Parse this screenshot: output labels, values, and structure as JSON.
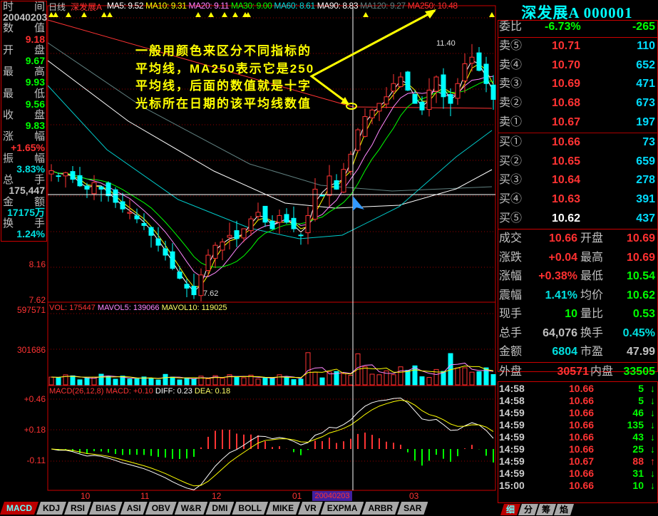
{
  "header": {
    "period": "日线",
    "stock_name": "深发展A",
    "ma": [
      {
        "label": "MA5: 9.52",
        "color": "#ffffff"
      },
      {
        "label": "MA10: 9.31",
        "color": "#ffff00"
      },
      {
        "label": "MA20: 9.11",
        "color": "#ff80ff"
      },
      {
        "label": "MA30: 9.00",
        "color": "#00ff00"
      },
      {
        "label": "MA60: 8.61",
        "color": "#00e0e0"
      },
      {
        "label": "MA90: 8.83",
        "color": "#ffffff"
      },
      {
        "label": "MA120: 9.27",
        "color": "#608080"
      },
      {
        "label": "MA250: 10.48",
        "color": "#ff3030"
      }
    ]
  },
  "left_panel": {
    "rows": [
      {
        "l": "时",
        "r": "间"
      },
      {
        "v": "20040203",
        "c": "#c0c0c0"
      },
      {
        "l": "数",
        "r": "值"
      },
      {
        "v": "9.18",
        "c": "#ff3030"
      },
      {
        "l": "开",
        "r": "盘"
      },
      {
        "v": "9.67",
        "c": "#00ff00"
      },
      {
        "l": "最",
        "r": "高"
      },
      {
        "v": "9.93",
        "c": "#00ff00"
      },
      {
        "l": "最",
        "r": "低"
      },
      {
        "v": "9.56",
        "c": "#00ff00"
      },
      {
        "l": "收",
        "r": "盘"
      },
      {
        "v": "9.83",
        "c": "#00ff00"
      },
      {
        "l": "涨",
        "r": "幅"
      },
      {
        "v": "+1.65%",
        "c": "#ff3030"
      },
      {
        "l": "振",
        "r": "幅"
      },
      {
        "v": "3.83%",
        "c": "#00e0e0"
      },
      {
        "l": "总",
        "r": "手"
      },
      {
        "v": "175,447",
        "c": "#c0c0c0"
      },
      {
        "l": "金",
        "r": "额"
      },
      {
        "v": "17175万",
        "c": "#00e0e0"
      },
      {
        "l": "换",
        "r": "手"
      },
      {
        "v": "1.24%",
        "c": "#00e0e0"
      }
    ]
  },
  "annotation": "一般用颜色来区分不同指标的平均线，MA250表示它是250平均线，后面的数值就是十字光标所在日期的该平均线数值",
  "chart_data": {
    "type": "candlestick",
    "price_ticks": [
      "8.16",
      "7.62"
    ],
    "high_label": "11.40",
    "low_label": "7.62",
    "price_range": [
      7.62,
      11.4
    ],
    "close": [
      9.58,
      9.5,
      9.55,
      9.45,
      9.35,
      9.3,
      9.4,
      9.3,
      9.2,
      9.1,
      9.0,
      8.95,
      8.85,
      8.75,
      8.6,
      8.45,
      8.3,
      8.1,
      7.95,
      7.8,
      7.7,
      8.0,
      8.3,
      8.45,
      8.5,
      8.6,
      8.55,
      8.7,
      8.85,
      8.95,
      8.8,
      8.7,
      8.9,
      8.8,
      8.7,
      8.6,
      8.9,
      9.3,
      9.2,
      9.5,
      9.3,
      9.6,
      9.83,
      10.2,
      10.4,
      10.5,
      10.6,
      10.7,
      10.9,
      11.0,
      10.8,
      10.6,
      10.5,
      10.8,
      11.0,
      10.7,
      10.6,
      10.9,
      11.2,
      11.3,
      11.1,
      10.9,
      10.66
    ],
    "volume": {
      "label": "VOL: 175447",
      "mavol5": "MAVOL5: 139066",
      "mavol10": "MAVOL10: 119025",
      "ticks": [
        "597571",
        "301686"
      ],
      "range": [
        0,
        597571
      ]
    },
    "macd": {
      "label": "MACD(26,12,8)",
      "macd": "MACD: +0.10",
      "diff": "DIFF: 0.23",
      "dea": "DEA: 0.18",
      "ticks": [
        "+0.46",
        "+0.18",
        "-0.11"
      ]
    },
    "x_ticks": [
      "10",
      "11",
      "12",
      "01",
      "03"
    ],
    "cursor_date": "20040203"
  },
  "indicator_tabs": [
    "MACD",
    "KDJ",
    "RSI",
    "BIAS",
    "ASI",
    "OBV",
    "W&R",
    "DMI",
    "BOLL",
    "MIKE",
    "VR",
    "EXPMA",
    "ARBR",
    "SAR"
  ],
  "right": {
    "title": "深发展A 000001",
    "weibi": {
      "label": "委比",
      "pct": "-6.73%",
      "diff": "-265"
    },
    "sell": [
      {
        "l": "卖⑤",
        "p": "10.71",
        "v": "110"
      },
      {
        "l": "卖④",
        "p": "10.70",
        "v": "652"
      },
      {
        "l": "卖③",
        "p": "10.69",
        "v": "471"
      },
      {
        "l": "卖②",
        "p": "10.68",
        "v": "673"
      },
      {
        "l": "卖①",
        "p": "10.67",
        "v": "197"
      }
    ],
    "buy": [
      {
        "l": "买①",
        "p": "10.66",
        "v": "73"
      },
      {
        "l": "买②",
        "p": "10.65",
        "v": "659"
      },
      {
        "l": "买③",
        "p": "10.64",
        "v": "278"
      },
      {
        "l": "买④",
        "p": "10.63",
        "v": "391"
      },
      {
        "l": "买⑤",
        "p": "10.62",
        "v": "437",
        "pc": "#ffffff"
      }
    ],
    "stats": [
      {
        "l1": "成交",
        "v1": "10.66",
        "c1": "#ff3030",
        "l2": "开盘",
        "v2": "10.69",
        "c2": "#ff3030"
      },
      {
        "l1": "涨跌",
        "v1": "+0.04",
        "c1": "#ff3030",
        "l2": "最高",
        "v2": "10.69",
        "c2": "#ff3030"
      },
      {
        "l1": "涨幅",
        "v1": "+0.38%",
        "c1": "#ff3030",
        "l2": "最低",
        "v2": "10.54",
        "c2": "#00ff00"
      },
      {
        "l1": "震幅",
        "v1": "1.41%",
        "c1": "#00e0e0",
        "l2": "均价",
        "v2": "10.62",
        "c2": "#00ff00"
      },
      {
        "l1": "现手",
        "v1": "10",
        "c1": "#00ff00",
        "l2": "量比",
        "v2": "0.53",
        "c2": "#00ff00"
      },
      {
        "l1": "总手",
        "v1": "64,076",
        "c1": "#c0c0c0",
        "l2": "换手",
        "v2": "0.45%",
        "c2": "#00e0e0"
      },
      {
        "l1": "金额",
        "v1": "6804",
        "c1": "#00e0e0",
        "l2": "市盈",
        "v2": "47.99",
        "c2": "#c0c0c0"
      }
    ],
    "outer": {
      "l1": "外盘",
      "v1": "30571",
      "l2": "内盘",
      "v2": "33505"
    },
    "ticks": [
      {
        "t": "14:58",
        "p": "10.66",
        "v": "5",
        "dir": "down"
      },
      {
        "t": "14:58",
        "p": "10.66",
        "v": "5",
        "dir": "down"
      },
      {
        "t": "14:59",
        "p": "10.66",
        "v": "46",
        "dir": "down"
      },
      {
        "t": "14:59",
        "p": "10.66",
        "v": "135",
        "dir": "down"
      },
      {
        "t": "14:59",
        "p": "10.66",
        "v": "43",
        "dir": "down"
      },
      {
        "t": "14:59",
        "p": "10.66",
        "v": "25",
        "dir": "down"
      },
      {
        "t": "14:59",
        "p": "10.67",
        "v": "88",
        "dir": "up"
      },
      {
        "t": "14:59",
        "p": "10.66",
        "v": "31",
        "dir": "down"
      },
      {
        "t": "15:00",
        "p": "10.66",
        "v": "10",
        "dir": "down"
      }
    ],
    "tabs": [
      "细",
      "分",
      "筹",
      "焰"
    ]
  },
  "colors": {
    "up": "#ff3030",
    "down": "#00e0e0",
    "frame": "#cc0000"
  }
}
